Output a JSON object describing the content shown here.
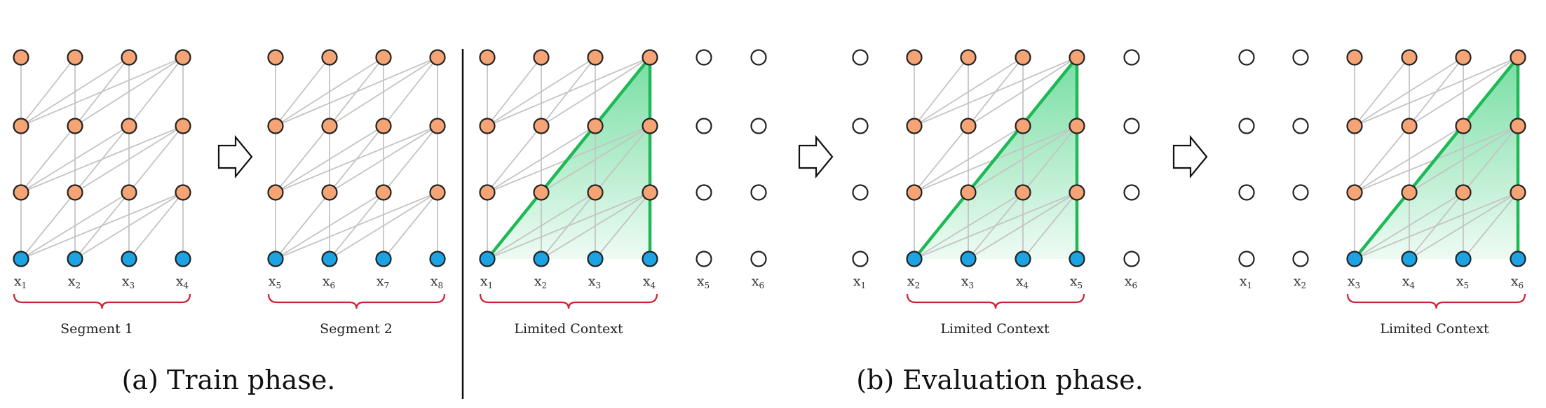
{
  "colors": {
    "hidden_node": "#f5a575",
    "input_node": "#1ba3e3",
    "inactive_node": "#ffffff",
    "edge": "#c4c4c4",
    "context_edge": "#1db954",
    "context_fill": "#2ecc71",
    "brace": "#cc2233"
  },
  "train_phase": {
    "caption": "(a) Train phase.",
    "segments": [
      {
        "label": "Segment 1",
        "tokens": [
          "x",
          "x",
          "x",
          "x"
        ],
        "subscripts": [
          "1",
          "2",
          "3",
          "4"
        ]
      },
      {
        "label": "Segment 2",
        "tokens": [
          "x",
          "x",
          "x",
          "x"
        ],
        "subscripts": [
          "5",
          "6",
          "7",
          "8"
        ]
      }
    ]
  },
  "evaluation_phase": {
    "caption": "(b) Evaluation phase.",
    "steps": [
      {
        "label": "Limited Context",
        "tokens": [
          "x",
          "x",
          "x",
          "x",
          "x",
          "x"
        ],
        "subscripts": [
          "1",
          "2",
          "3",
          "4",
          "5",
          "6"
        ],
        "context_start": 0
      },
      {
        "label": "Limited Context",
        "tokens": [
          "x",
          "x",
          "x",
          "x",
          "x",
          "x"
        ],
        "subscripts": [
          "1",
          "2",
          "3",
          "4",
          "5",
          "6"
        ],
        "context_start": 1
      },
      {
        "label": "Limited Context",
        "tokens": [
          "x",
          "x",
          "x",
          "x",
          "x",
          "x"
        ],
        "subscripts": [
          "1",
          "2",
          "3",
          "4",
          "5",
          "6"
        ],
        "context_start": 2
      }
    ]
  },
  "icons": {
    "transition_arrow": "right-arrow-icon"
  }
}
